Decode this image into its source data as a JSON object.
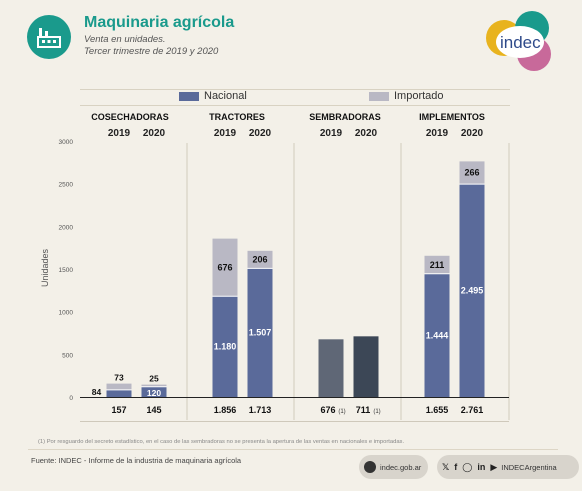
{
  "header": {
    "title": "Maquinaria agrícola",
    "subtitle_line1": "Venta en unidades.",
    "subtitle_line2": "Tercer trimestre de 2019 y 2020",
    "logo_text": "indec"
  },
  "legend": {
    "nacional": "Nacional",
    "importado": "Importado"
  },
  "colors": {
    "nacional": "#5a6a9a",
    "importado": "#b9b8c4",
    "sembradoras_2019": "#5f6776",
    "sembradoras_2020": "#3c4756",
    "accent": "#1a9a8c"
  },
  "chart_data": {
    "type": "bar",
    "stacked": true,
    "ylabel": "Unidades",
    "ylim": [
      0,
      3000
    ],
    "yticks": [
      0,
      500,
      1000,
      1500,
      2000,
      2500,
      3000
    ],
    "ytick_labels": [
      "0",
      "500",
      "1000",
      "1500",
      "2000",
      "2500",
      "3000"
    ],
    "series_names": [
      "Nacional",
      "Importado"
    ],
    "groups": [
      {
        "name": "COSECHADORAS",
        "bars": [
          {
            "year": "2019",
            "nacional": 84,
            "importado": 73,
            "nacional_label": "84",
            "importado_label": "73",
            "total_label": "157"
          },
          {
            "year": "2020",
            "nacional": 120,
            "importado": 25,
            "nacional_label": "120",
            "importado_label": "25",
            "total_label": "145"
          }
        ]
      },
      {
        "name": "TRACTORES",
        "bars": [
          {
            "year": "2019",
            "nacional": 1180,
            "importado": 676,
            "nacional_label": "1.180",
            "importado_label": "676",
            "total_label": "1.856"
          },
          {
            "year": "2020",
            "nacional": 1507,
            "importado": 206,
            "nacional_label": "1.507",
            "importado_label": "206",
            "total_label": "1.713"
          }
        ]
      },
      {
        "name": "SEMBRADORAS",
        "bars": [
          {
            "year": "2019",
            "total": 676,
            "total_label": "676",
            "note": "(1)"
          },
          {
            "year": "2020",
            "total": 711,
            "total_label": "711",
            "note": "(1)"
          }
        ]
      },
      {
        "name": "IMPLEMENTOS",
        "bars": [
          {
            "year": "2019",
            "nacional": 1444,
            "importado": 211,
            "nacional_label": "1.444",
            "importado_label": "211",
            "total_label": "1.655"
          },
          {
            "year": "2020",
            "nacional": 2495,
            "importado": 266,
            "nacional_label": "2.495",
            "importado_label": "266",
            "total_label": "2.761"
          }
        ]
      }
    ]
  },
  "footnote": "(1) Por resguardo del secreto estadístico, en el caso de las sembradoras no se presenta la apertura de las ventas en nacionales e importadas.",
  "footer": {
    "source": "Fuente: INDEC - Informe de la industria de maquinaria agrícola",
    "website": "indec.gob.ar",
    "social_handle": "INDECArgentina"
  }
}
